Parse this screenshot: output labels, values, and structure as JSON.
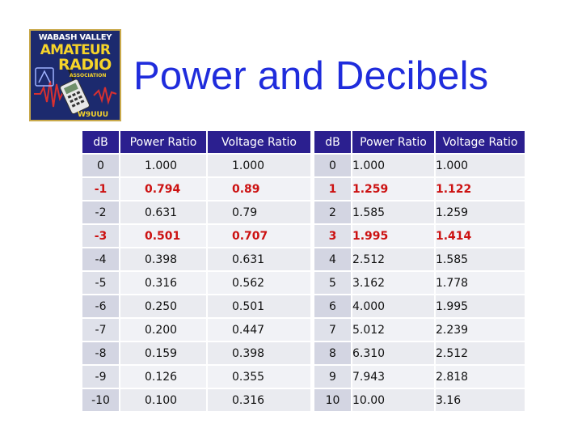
{
  "title": "Power and Decibels",
  "logo": {
    "line1": "WABASH VALLEY",
    "line2": "AMATEUR",
    "line3": "RADIO",
    "line4": "ASSOCIATION",
    "callsign": "W9UUU"
  },
  "tables": [
    {
      "headers": [
        "dB",
        "Power Ratio",
        "Voltage Ratio"
      ],
      "rows": [
        {
          "db": "0",
          "power": "1.000",
          "voltage": "1.000",
          "highlight": false
        },
        {
          "db": "-1",
          "power": "0.794",
          "voltage": "0.89",
          "highlight": true
        },
        {
          "db": "-2",
          "power": "0.631",
          "voltage": "0.79",
          "highlight": false
        },
        {
          "db": "-3",
          "power": "0.501",
          "voltage": "0.707",
          "highlight": true
        },
        {
          "db": "-4",
          "power": "0.398",
          "voltage": "0.631",
          "highlight": false
        },
        {
          "db": "-5",
          "power": "0.316",
          "voltage": "0.562",
          "highlight": false
        },
        {
          "db": "-6",
          "power": "0.250",
          "voltage": "0.501",
          "highlight": false
        },
        {
          "db": "-7",
          "power": "0.200",
          "voltage": "0.447",
          "highlight": false
        },
        {
          "db": "-8",
          "power": "0.159",
          "voltage": "0.398",
          "highlight": false
        },
        {
          "db": "-9",
          "power": "0.126",
          "voltage": "0.355",
          "highlight": false
        },
        {
          "db": "-10",
          "power": "0.100",
          "voltage": "0.316",
          "highlight": false
        }
      ]
    },
    {
      "headers": [
        "dB",
        "Power Ratio",
        "Voltage Ratio"
      ],
      "rows": [
        {
          "db": "0",
          "power": "1.000",
          "voltage": "1.000",
          "highlight": false
        },
        {
          "db": "1",
          "power": "1.259",
          "voltage": "1.122",
          "highlight": true
        },
        {
          "db": "2",
          "power": "1.585",
          "voltage": "1.259",
          "highlight": false
        },
        {
          "db": "3",
          "power": "1.995",
          "voltage": "1.414",
          "highlight": true
        },
        {
          "db": "4",
          "power": "2.512",
          "voltage": "1.585",
          "highlight": false
        },
        {
          "db": "5",
          "power": "3.162",
          "voltage": "1.778",
          "highlight": false
        },
        {
          "db": "6",
          "power": "4.000",
          "voltage": "1.995",
          "highlight": false
        },
        {
          "db": "7",
          "power": "5.012",
          "voltage": "2.239",
          "highlight": false
        },
        {
          "db": "8",
          "power": "6.310",
          "voltage": "2.512",
          "highlight": false
        },
        {
          "db": "9",
          "power": "7.943",
          "voltage": "2.818",
          "highlight": false
        },
        {
          "db": "10",
          "power": "10.00",
          "voltage": "3.16",
          "highlight": false
        }
      ]
    }
  ],
  "colors": {
    "title": "#1f2cdc",
    "header_bg": "#2b1f8f",
    "highlight_text": "#cc1111"
  }
}
